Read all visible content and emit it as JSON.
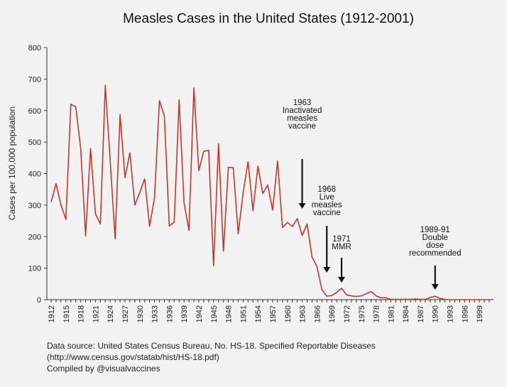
{
  "chart_data": {
    "type": "line",
    "title": "Measles Cases in the United States (1912-2001)",
    "ylabel": "Cases per 100,000 population",
    "xlabel": "",
    "ylim": [
      0,
      800
    ],
    "xlim": [
      1912,
      2001
    ],
    "yticks": [
      0,
      100,
      200,
      300,
      400,
      500,
      600,
      700,
      800
    ],
    "xticks": [
      1912,
      1915,
      1918,
      1921,
      1924,
      1927,
      1930,
      1933,
      1936,
      1939,
      1942,
      1945,
      1948,
      1951,
      1954,
      1957,
      1960,
      1963,
      1966,
      1969,
      1972,
      1975,
      1978,
      1981,
      1984,
      1987,
      1990,
      1993,
      1996,
      1999
    ],
    "grid": false,
    "line_color": "#c0392b",
    "series": [
      {
        "x": [
          1912,
          1913,
          1914,
          1915,
          1916,
          1917,
          1918,
          1919,
          1920,
          1921,
          1922,
          1923,
          1924,
          1925,
          1926,
          1927,
          1928,
          1929,
          1930,
          1931,
          1932,
          1933,
          1934,
          1935,
          1936,
          1937,
          1938,
          1939,
          1940,
          1941,
          1942,
          1943,
          1944,
          1945,
          1946,
          1947,
          1948,
          1949,
          1950,
          1951,
          1952,
          1953,
          1954,
          1955,
          1956,
          1957,
          1958,
          1959,
          1960,
          1961,
          1962,
          1963,
          1964,
          1965,
          1966,
          1967,
          1968,
          1969,
          1970,
          1971,
          1972,
          1973,
          1974,
          1975,
          1976,
          1977,
          1978,
          1979,
          1980,
          1981,
          1982,
          1983,
          1984,
          1985,
          1986,
          1987,
          1988,
          1989,
          1990,
          1991,
          1992,
          1993,
          1994,
          1995,
          1996,
          1997,
          1998,
          1999,
          2000,
          2001
        ],
        "values": [
          310,
          368,
          300,
          255,
          620,
          612,
          480,
          202,
          480,
          273,
          240,
          680,
          440,
          193,
          587,
          387,
          466,
          300,
          340,
          383,
          233,
          323,
          632,
          583,
          234,
          246,
          634,
          307,
          220,
          672,
          410,
          471,
          474,
          108,
          495,
          154,
          420,
          419,
          209,
          339,
          438,
          282,
          424,
          337,
          364,
          284,
          440,
          229,
          245,
          232,
          257,
          204,
          240,
          135,
          105,
          32,
          11,
          13,
          23,
          36,
          15,
          12,
          10,
          12,
          19,
          26,
          12,
          6,
          6,
          1,
          1,
          1,
          1,
          1,
          2,
          1,
          1,
          7,
          11,
          4,
          1,
          0,
          0,
          0,
          0,
          0,
          0,
          0,
          0,
          0
        ]
      }
    ],
    "annotations": [
      {
        "x": 1963,
        "lines": [
          "1963",
          "Inactivated",
          "measles",
          "vaccine"
        ]
      },
      {
        "x": 1968,
        "lines": [
          "1968",
          "Live",
          "measles",
          "vaccine"
        ]
      },
      {
        "x": 1971,
        "lines": [
          "1971",
          "MMR"
        ]
      },
      {
        "x": 1990,
        "lines": [
          "1989-91",
          "Double",
          "dose",
          "recommended"
        ]
      }
    ]
  },
  "source": {
    "line1": "Data source: United States Census Bureau, No. HS-18. Specified Reportable Diseases",
    "line2": "(http://www.census.gov/statab/hist/HS-18.pdf)",
    "line3": "Compiled by @visualvaccines"
  }
}
